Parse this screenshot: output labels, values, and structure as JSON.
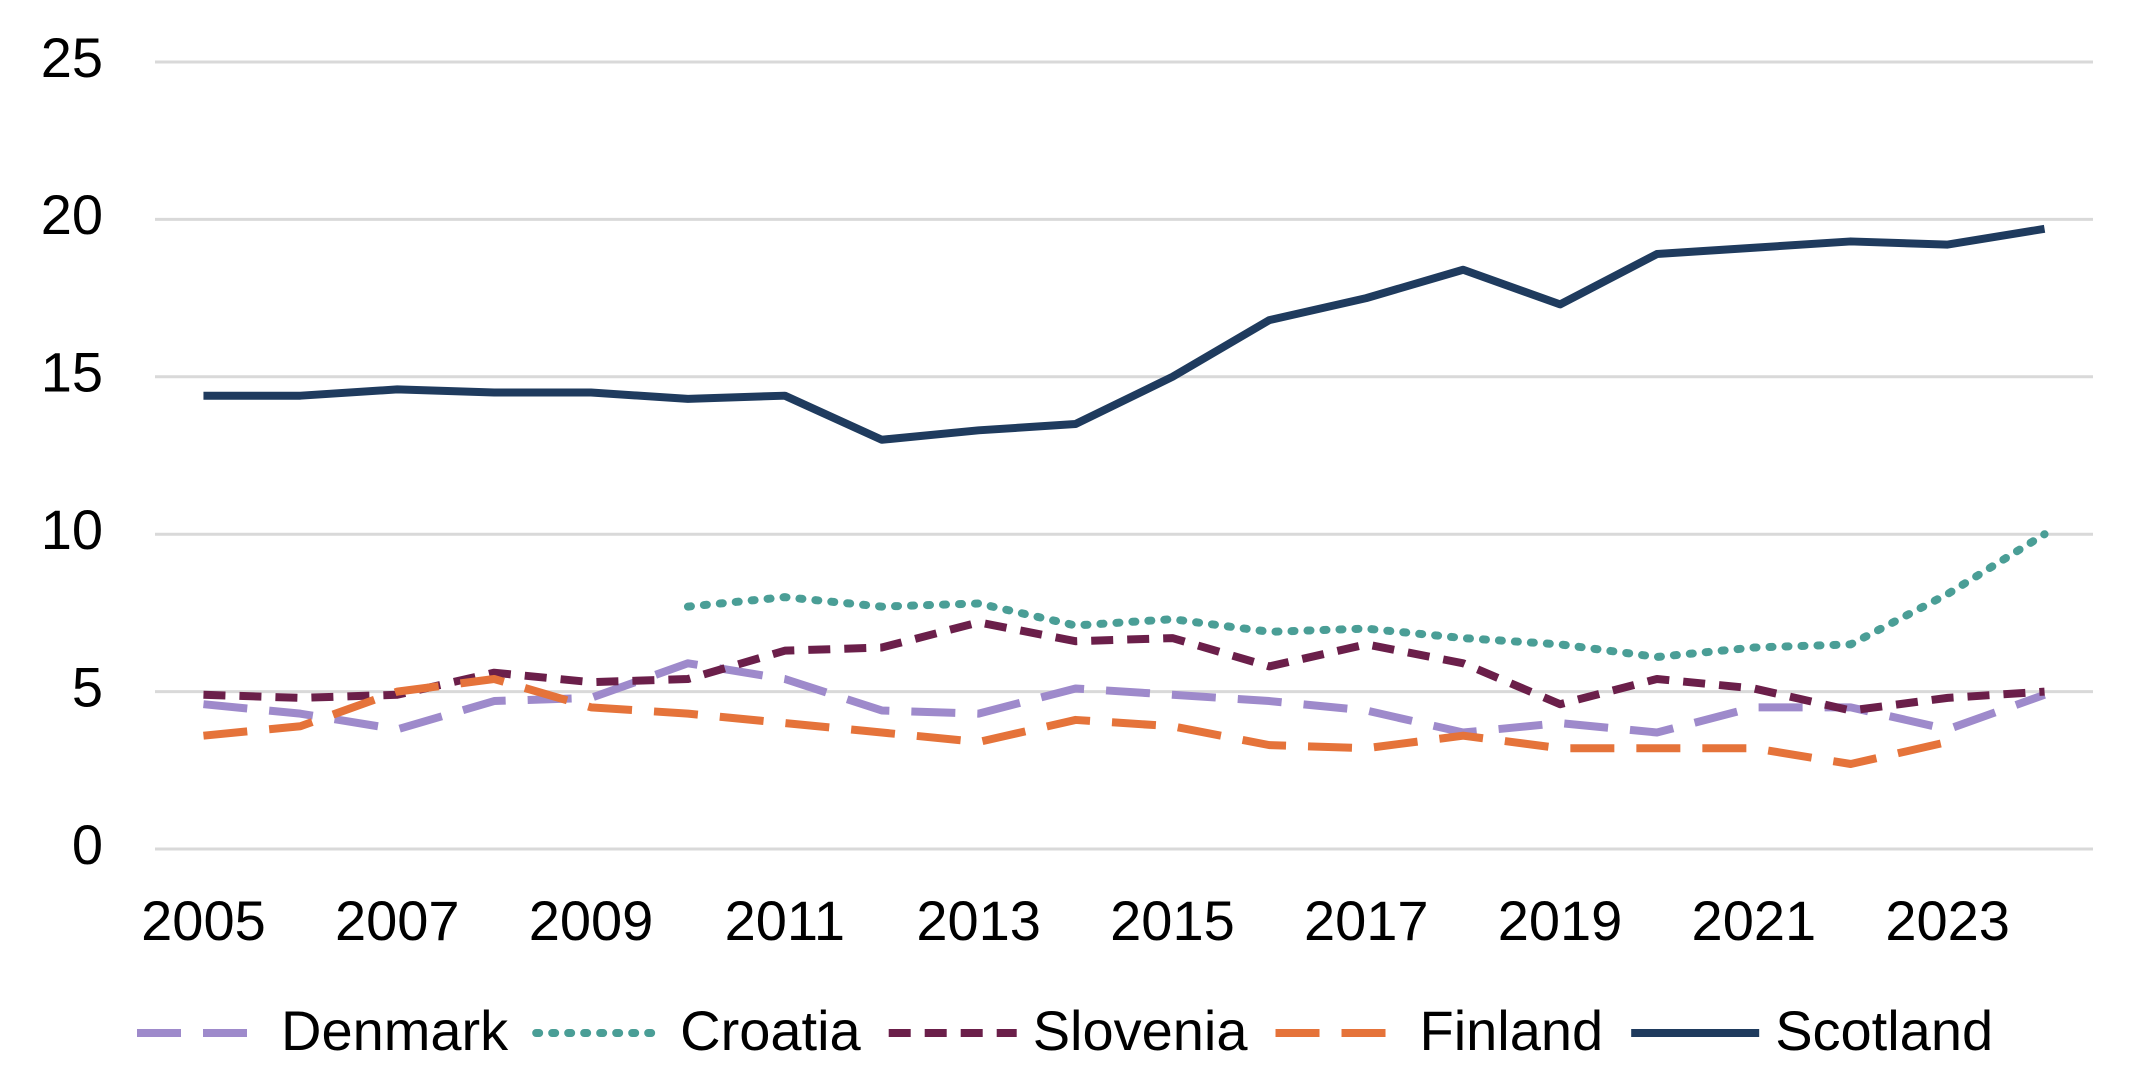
{
  "chart_data": {
    "type": "line",
    "x": [
      2005,
      2006,
      2007,
      2008,
      2009,
      2010,
      2011,
      2012,
      2013,
      2014,
      2015,
      2016,
      2017,
      2018,
      2019,
      2020,
      2021,
      2022,
      2023,
      2024
    ],
    "xlim": [
      2004.5,
      2024.5
    ],
    "xticks": [
      2005,
      2007,
      2009,
      2011,
      2013,
      2015,
      2017,
      2019,
      2021,
      2023
    ],
    "ylim": [
      0,
      25
    ],
    "yticks": [
      0,
      5,
      10,
      15,
      20,
      25
    ],
    "grid": true,
    "legend": "bottom",
    "series": [
      {
        "name": "Denmark",
        "color": "#9e8acb",
        "style": "longdash",
        "values": [
          4.6,
          4.3,
          3.8,
          4.7,
          4.8,
          5.9,
          5.4,
          4.4,
          4.3,
          5.1,
          4.9,
          4.7,
          4.4,
          3.7,
          4.0,
          3.7,
          4.5,
          4.5,
          3.8,
          4.9
        ]
      },
      {
        "name": "Croatia",
        "color": "#4a9e96",
        "style": "dot",
        "values": [
          null,
          null,
          null,
          null,
          null,
          7.7,
          8.0,
          7.7,
          7.8,
          7.1,
          7.3,
          6.9,
          7.0,
          6.7,
          6.5,
          6.1,
          6.4,
          6.5,
          8.1,
          10.0
        ]
      },
      {
        "name": "Slovenia",
        "color": "#6b1f4a",
        "style": "dash",
        "values": [
          4.9,
          4.8,
          4.9,
          5.6,
          5.3,
          5.4,
          6.3,
          6.4,
          7.2,
          6.6,
          6.7,
          5.8,
          6.5,
          5.9,
          4.6,
          5.4,
          5.1,
          4.4,
          4.8,
          5.0
        ]
      },
      {
        "name": "Finland",
        "color": "#e5733a",
        "style": "longdash",
        "values": [
          3.6,
          3.9,
          5.0,
          5.4,
          4.5,
          4.3,
          4.0,
          3.7,
          3.4,
          4.1,
          3.9,
          3.3,
          3.2,
          3.6,
          3.2,
          3.2,
          3.2,
          2.7,
          3.4,
          null
        ]
      },
      {
        "name": "Scotland",
        "color": "#1f3b5e",
        "style": "solid",
        "values": [
          14.4,
          14.4,
          14.6,
          14.5,
          14.5,
          14.3,
          14.4,
          13.0,
          13.3,
          13.5,
          15.0,
          16.8,
          17.5,
          18.4,
          17.3,
          18.9,
          19.1,
          19.3,
          19.2,
          19.7
        ]
      }
    ]
  }
}
